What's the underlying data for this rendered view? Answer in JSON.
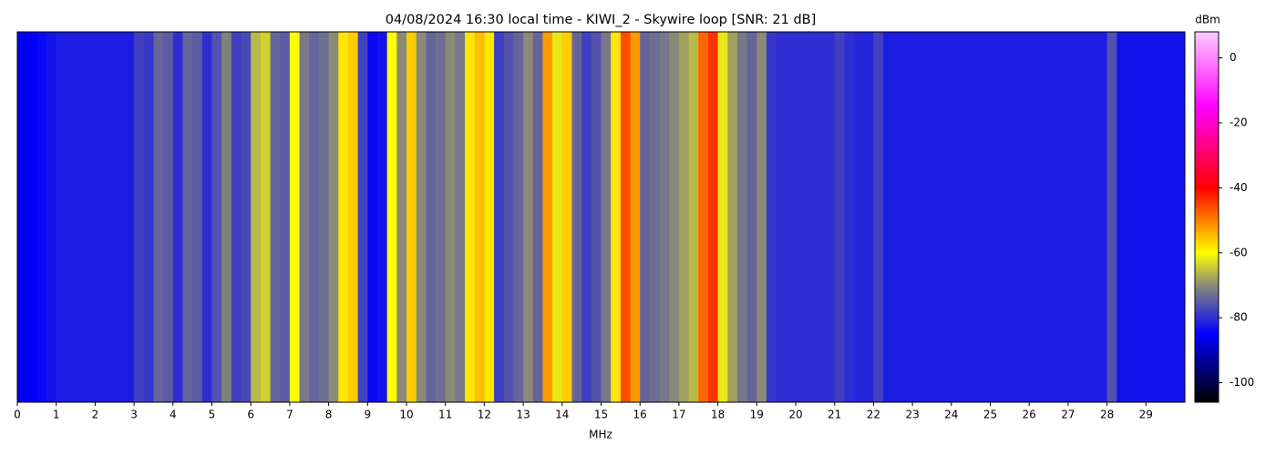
{
  "chart_data": {
    "type": "spectrogram",
    "title": "04/08/2024 16:30 local time - KIWI_2 - Skywire loop [SNR: 21 dB]",
    "x_label": "MHz",
    "colorbar_label": "dBm",
    "xlim": [
      0,
      30
    ],
    "xticks": [
      0,
      1,
      2,
      3,
      4,
      5,
      6,
      7,
      8,
      9,
      10,
      11,
      12,
      13,
      14,
      15,
      16,
      17,
      18,
      19,
      20,
      21,
      22,
      23,
      24,
      25,
      26,
      27,
      28,
      29
    ],
    "bin_width": 0.25,
    "values": [
      -86,
      -85,
      -84,
      -83,
      -82,
      -82,
      -82,
      -82,
      -82,
      -82,
      -82,
      -82,
      -78,
      -79,
      -74,
      -75,
      -80,
      -74,
      -75,
      -80,
      -76,
      -71,
      -78,
      -77,
      -66,
      -64,
      -74,
      -75,
      -60,
      -72,
      -74,
      -73,
      -70,
      -58,
      -56,
      -78,
      -84,
      -83,
      -60,
      -70,
      -56,
      -70,
      -74,
      -73,
      -70,
      -72,
      -58,
      -55,
      -58,
      -78,
      -76,
      -74,
      -70,
      -74,
      -52,
      -62,
      -56,
      -74,
      -78,
      -76,
      -72,
      -58,
      -46,
      -52,
      -74,
      -73,
      -72,
      -70,
      -68,
      -66,
      -48,
      -44,
      -62,
      -68,
      -72,
      -74,
      -70,
      -79,
      -80,
      -80,
      -80,
      -80,
      -80,
      -80,
      -78,
      -80,
      -81,
      -81,
      -78,
      -82,
      -82,
      -82,
      -82,
      -82,
      -82,
      -82,
      -82,
      -82,
      -82,
      -82,
      -82,
      -82,
      -82,
      -82,
      -82,
      -82,
      -82,
      -82,
      -82,
      -82,
      -82,
      -82,
      -76,
      -83,
      -83,
      -83,
      -83,
      -83,
      -83,
      -83
    ],
    "clim": [
      -106,
      8
    ],
    "cticks": [
      0,
      -20,
      -40,
      -60,
      -80,
      -100
    ],
    "colormap": [
      {
        "value": -106,
        "color": "#000000"
      },
      {
        "value": -85,
        "color": "#0000ff"
      },
      {
        "value": -70,
        "color": "#8a8a78"
      },
      {
        "value": -60,
        "color": "#ffff00"
      },
      {
        "value": -40,
        "color": "#ff0000"
      },
      {
        "value": -15,
        "color": "#ff00ff"
      },
      {
        "value": 8,
        "color": "#ffccff"
      }
    ]
  }
}
